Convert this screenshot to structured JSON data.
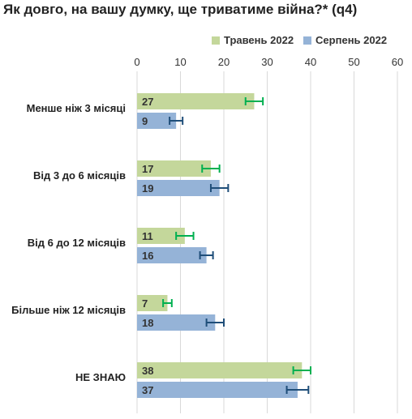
{
  "chart_data": {
    "type": "bar",
    "orientation": "horizontal",
    "title": "Як довго, на вашу думку, ще триватиме війна?* (q4)",
    "categories": [
      "Менше ніж 3 місяці",
      "Від 3 до 6 місяців",
      "Від 6 до 12 місяців",
      "Більше ніж 12 місяців",
      "НЕ ЗНАЮ"
    ],
    "series": [
      {
        "name": "Травень 2022",
        "values": [
          27,
          17,
          11,
          7,
          38
        ],
        "color": "#c4d79b",
        "error_color": "#00b050",
        "error": [
          2,
          2,
          2,
          1,
          2
        ]
      },
      {
        "name": "Серпень 2022",
        "values": [
          9,
          19,
          16,
          18,
          37
        ],
        "color": "#95b3d7",
        "error_color": "#1f4e79",
        "error": [
          1.5,
          2,
          1.5,
          2,
          2.5
        ]
      }
    ],
    "xlim": [
      0,
      60
    ],
    "ticks": [
      0,
      10,
      20,
      30,
      40,
      50,
      60
    ],
    "grid": true,
    "legend_position": "top-right"
  }
}
